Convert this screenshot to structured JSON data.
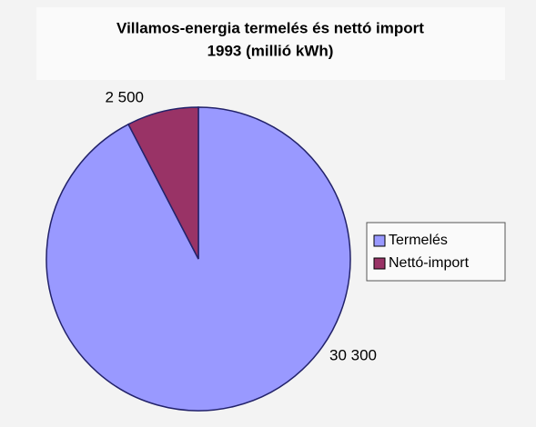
{
  "chart_data": {
    "type": "pie",
    "title": "Villamos-energia termelés és nettó import",
    "subtitle": "1993 (millió kWh)",
    "categories": [
      "Termelés",
      "Nettó-import"
    ],
    "values": [
      30300,
      2500
    ],
    "value_labels": [
      "30 300",
      "2 500"
    ],
    "colors": [
      "#9999ff",
      "#993366"
    ],
    "legend": "right"
  }
}
